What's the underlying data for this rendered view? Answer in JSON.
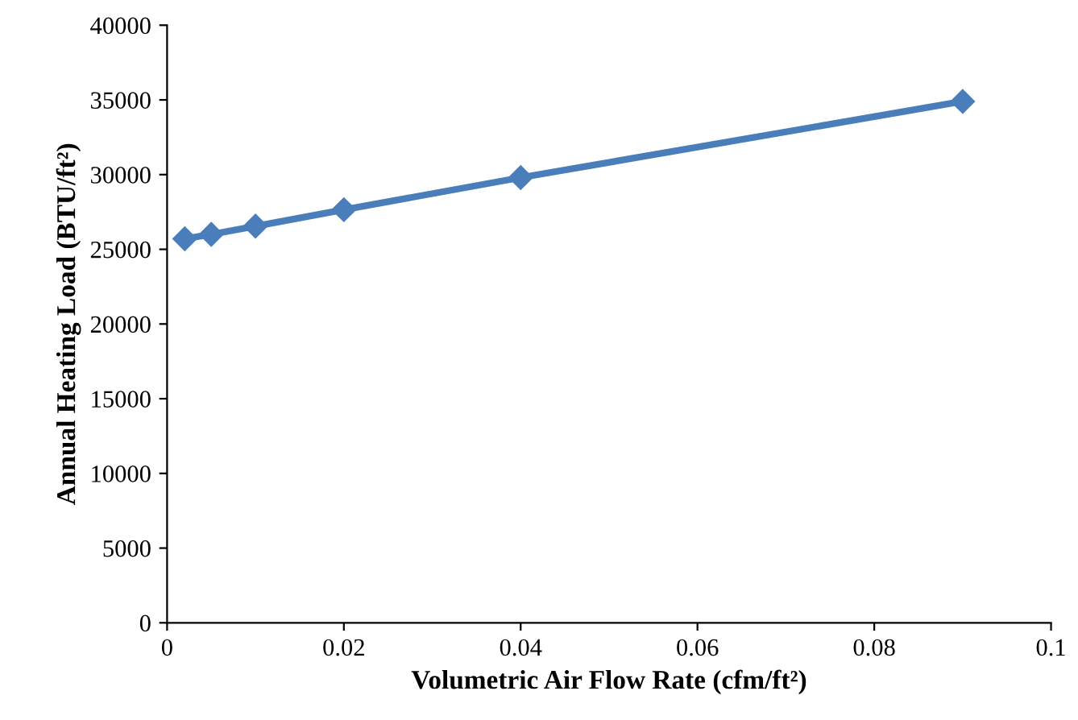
{
  "chart_data": {
    "type": "line",
    "xlabel": "Volumetric Air Flow Rate (cfm/ft²)",
    "ylabel": "Annual Heating Load (BTU/ft²)",
    "x": [
      0.002,
      0.005,
      0.01,
      0.02,
      0.04,
      0.09
    ],
    "series": [
      {
        "color": "#4a7ebb",
        "values": [
          25700,
          26000,
          26550,
          27650,
          29800,
          34900
        ]
      }
    ],
    "xlim": [
      0,
      0.1
    ],
    "xticks": [
      0,
      0.02,
      0.04,
      0.06,
      0.08,
      0.1
    ],
    "ylim": [
      0,
      40000
    ],
    "yticks": [
      0,
      5000,
      10000,
      15000,
      20000,
      25000,
      30000,
      35000,
      40000
    ],
    "marker": "diamond",
    "line_style": "solid",
    "grid": false,
    "legend": false
  }
}
